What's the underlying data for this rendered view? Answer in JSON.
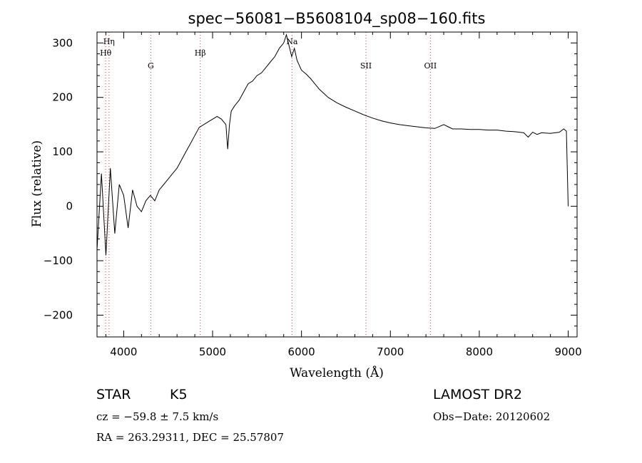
{
  "chart_data": {
    "type": "line",
    "title": "spec−56081−B5608104_sp08−160.fits",
    "xlabel": "Wavelength (Å)",
    "ylabel": "Flux (relative)",
    "xlim": [
      3700,
      9100
    ],
    "ylim": [
      -240,
      320
    ],
    "xticks": [
      4000,
      5000,
      6000,
      7000,
      8000,
      9000
    ],
    "xtick_labels": [
      "4000",
      "5000",
      "6000",
      "7000",
      "8000",
      "9000"
    ],
    "yticks": [
      -200,
      -100,
      0,
      100,
      200,
      300
    ],
    "ytick_labels": [
      "−200",
      "−100",
      "0",
      "100",
      "200",
      "300"
    ],
    "grid": false,
    "line_color": "#000000",
    "marker_color": "#c04040",
    "spectral_lines": [
      {
        "label": "Hη",
        "wavelength": 3835,
        "row": 0
      },
      {
        "label": "Hθ",
        "wavelength": 3798,
        "row": 1
      },
      {
        "label": "G",
        "wavelength": 4305,
        "row": 2
      },
      {
        "label": "Hβ",
        "wavelength": 4861,
        "row": 1
      },
      {
        "label": "Na",
        "wavelength": 5893,
        "row": 0
      },
      {
        "label": "SII",
        "wavelength": 6725,
        "row": 2
      },
      {
        "label": "OII",
        "wavelength": 7450,
        "row": 2
      }
    ],
    "series": [
      {
        "x": [
          3700,
          3750,
          3800,
          3850,
          3900,
          3950,
          4000,
          4050,
          4100,
          4150,
          4200,
          4250,
          4300,
          4350,
          4400,
          4450,
          4500,
          4550,
          4600,
          4650,
          4700,
          4750,
          4800,
          4850,
          4900,
          4950,
          5000,
          5050,
          5100,
          5150,
          5170,
          5190,
          5210,
          5250,
          5300,
          5350,
          5400,
          5450,
          5500,
          5550,
          5600,
          5650,
          5700,
          5750,
          5800,
          5830,
          5860,
          5890,
          5920,
          5950,
          6000,
          6050,
          6100,
          6150,
          6200,
          6300,
          6400,
          6500,
          6600,
          6700,
          6800,
          6900,
          7000,
          7100,
          7200,
          7300,
          7400,
          7500,
          7600,
          7650,
          7700,
          7800,
          7900,
          8000,
          8100,
          8200,
          8300,
          8400,
          8500,
          8550,
          8600,
          8650,
          8700,
          8800,
          8900,
          8950,
          8980,
          9000
        ],
        "y": [
          -80,
          60,
          -90,
          70,
          -50,
          40,
          20,
          -40,
          30,
          0,
          -10,
          10,
          20,
          10,
          30,
          40,
          50,
          60,
          70,
          85,
          100,
          115,
          130,
          145,
          150,
          155,
          160,
          165,
          160,
          150,
          105,
          150,
          175,
          185,
          195,
          210,
          225,
          230,
          240,
          245,
          255,
          265,
          275,
          290,
          300,
          315,
          295,
          275,
          290,
          268,
          250,
          243,
          235,
          225,
          215,
          200,
          190,
          182,
          175,
          168,
          162,
          157,
          153,
          150,
          148,
          146,
          144,
          143,
          150,
          146,
          142,
          142,
          141,
          141,
          140,
          140,
          138,
          137,
          135,
          127,
          136,
          132,
          135,
          134,
          136,
          142,
          138,
          0
        ]
      }
    ]
  },
  "info": {
    "object_class": "STAR",
    "subclass": "K5",
    "survey": "LAMOST DR2",
    "redshift_text": "cz = −59.8 ± 7.5 km/s",
    "obs_date": "Obs−Date: 20120602",
    "coords": "RA = 263.29311, DEC =  25.57807"
  }
}
